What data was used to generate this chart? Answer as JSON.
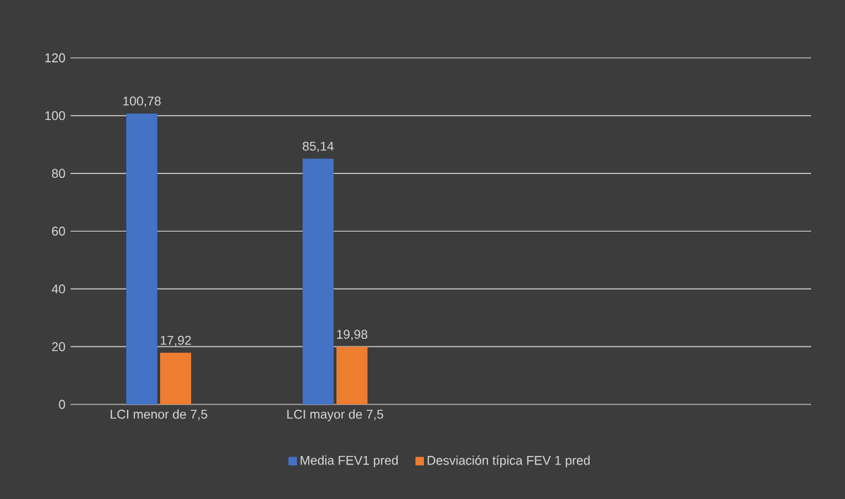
{
  "chart_data": {
    "type": "bar",
    "categories": [
      "LCI menor de 7,5",
      "LCI mayor de 7,5"
    ],
    "series": [
      {
        "name": "Media FEV1 pred",
        "color": "#4472c4",
        "values": [
          100.78,
          85.14
        ],
        "value_labels": [
          "100,78",
          "85,14"
        ]
      },
      {
        "name": "Desviación típica FEV 1 pred",
        "color": "#ed7d31",
        "values": [
          17.92,
          19.98
        ],
        "value_labels": [
          "17,92",
          "19,98"
        ]
      }
    ],
    "ylim": [
      0,
      120
    ],
    "yticks": [
      0,
      20,
      40,
      60,
      80,
      100,
      120
    ],
    "grid": "y",
    "legend": "bottom"
  }
}
